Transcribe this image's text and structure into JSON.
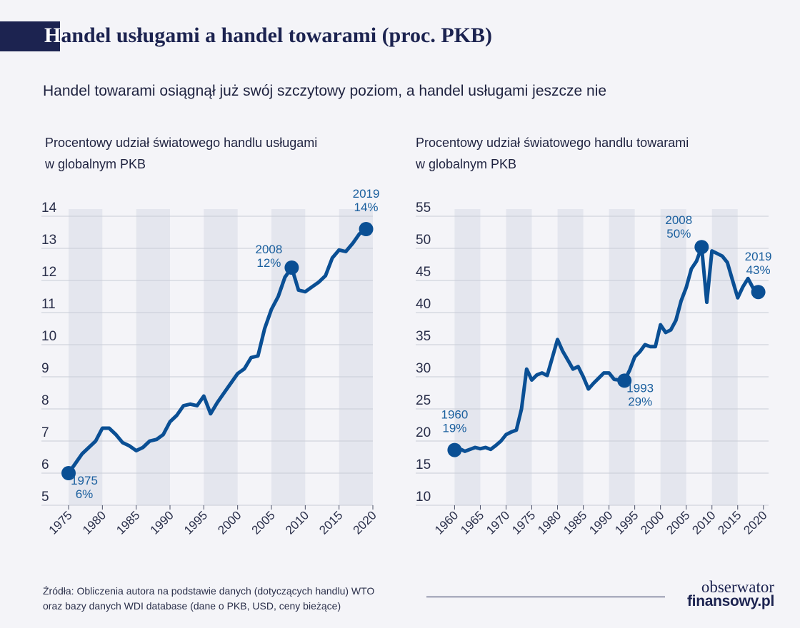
{
  "header": {
    "title_initial": "H",
    "title_rest": "andel usługami a handel towarami (proc. PKB)",
    "subtitle": "Handel towarami osiągnął już swój szczytowy poziom, a handel usługami jeszcze nie"
  },
  "colors": {
    "line": "#0a4f94",
    "accent_text": "#1a5f9e",
    "band": "#e4e6ee",
    "grid": "#c9ccd6",
    "title_bar": "#1c2350"
  },
  "chart_data": [
    {
      "type": "line",
      "title_lines": [
        "Procentowy udział światowego handlu usługami",
        "w globalnym PKB"
      ],
      "x_ticks": [
        1975,
        1980,
        1985,
        1990,
        1995,
        2000,
        2005,
        2010,
        2015,
        2020
      ],
      "y_ticks": [
        5,
        6,
        7,
        8,
        9,
        10,
        11,
        12,
        13,
        14
      ],
      "xlim": [
        1975,
        2020
      ],
      "ylim": [
        5,
        14
      ],
      "grid": true,
      "x": [
        1975,
        1976,
        1977,
        1978,
        1979,
        1980,
        1981,
        1982,
        1983,
        1984,
        1985,
        1986,
        1987,
        1988,
        1989,
        1990,
        1991,
        1992,
        1993,
        1994,
        1995,
        1996,
        1997,
        1998,
        1999,
        2000,
        2001,
        2002,
        2003,
        2004,
        2005,
        2006,
        2007,
        2008,
        2009,
        2010,
        2011,
        2012,
        2013,
        2014,
        2015,
        2016,
        2017,
        2018,
        2019
      ],
      "y": [
        6.0,
        6.3,
        6.6,
        6.8,
        7.0,
        7.4,
        7.4,
        7.2,
        6.95,
        6.85,
        6.7,
        6.8,
        7.0,
        7.05,
        7.2,
        7.6,
        7.8,
        8.1,
        8.15,
        8.1,
        8.4,
        7.85,
        8.2,
        8.5,
        8.8,
        9.1,
        9.25,
        9.6,
        9.65,
        10.5,
        11.1,
        11.5,
        12.1,
        12.4,
        11.7,
        11.65,
        11.8,
        11.95,
        12.15,
        12.7,
        12.95,
        12.9,
        13.15,
        13.45,
        13.6
      ],
      "highlights": [
        {
          "year": 1975,
          "value": 6.0,
          "year_label": "1975",
          "value_label": "6%",
          "pos": "below-right"
        },
        {
          "year": 2008,
          "value": 12.4,
          "year_label": "2008",
          "value_label": "12%",
          "pos": "left"
        },
        {
          "year": 2019,
          "value": 13.6,
          "year_label": "2019",
          "value_label": "14%",
          "pos": "above"
        }
      ]
    },
    {
      "type": "line",
      "title_lines": [
        "Procentowy udział światowego handlu towarami",
        "w globalnym PKB"
      ],
      "x_ticks": [
        1960,
        1965,
        1970,
        1975,
        1980,
        1985,
        1990,
        1995,
        2000,
        2005,
        2010,
        2015,
        2020
      ],
      "y_ticks": [
        10,
        15,
        20,
        25,
        30,
        35,
        40,
        45,
        50,
        55
      ],
      "xlim": [
        1958,
        2021
      ],
      "ylim": [
        10,
        55
      ],
      "grid": true,
      "x": [
        1960,
        1961,
        1962,
        1963,
        1964,
        1965,
        1966,
        1967,
        1968,
        1969,
        1970,
        1971,
        1972,
        1973,
        1974,
        1975,
        1976,
        1977,
        1978,
        1979,
        1980,
        1981,
        1982,
        1983,
        1984,
        1985,
        1986,
        1987,
        1988,
        1989,
        1990,
        1991,
        1992,
        1993,
        1994,
        1995,
        1996,
        1997,
        1998,
        1999,
        2000,
        2001,
        2002,
        2003,
        2004,
        2005,
        2006,
        2007,
        2008,
        2009,
        2010,
        2011,
        2012,
        2013,
        2014,
        2015,
        2016,
        2017,
        2018,
        2019
      ],
      "y": [
        18.6,
        18.8,
        18.4,
        18.7,
        19.0,
        18.8,
        19.0,
        18.7,
        19.3,
        20.0,
        21.0,
        21.4,
        21.7,
        25.0,
        31.2,
        29.5,
        30.3,
        30.6,
        30.2,
        33.0,
        35.8,
        34.0,
        32.6,
        31.2,
        31.6,
        30.0,
        28.1,
        29.0,
        29.8,
        30.6,
        30.6,
        29.6,
        29.5,
        29.4,
        31.0,
        33.1,
        33.9,
        35.0,
        34.7,
        34.7,
        38.1,
        36.9,
        37.3,
        38.8,
        41.8,
        43.9,
        46.8,
        48.0,
        50.2,
        41.6,
        49.6,
        49.2,
        48.8,
        47.8,
        45.0,
        42.3,
        44.0,
        45.3,
        43.8,
        43.2
      ],
      "highlights": [
        {
          "year": 1960,
          "value": 18.6,
          "year_label": "1960",
          "value_label": "19%",
          "pos": "above"
        },
        {
          "year": 1993,
          "value": 29.4,
          "year_label": "1993",
          "value_label": "29%",
          "pos": "below-right"
        },
        {
          "year": 2008,
          "value": 50.2,
          "year_label": "2008",
          "value_label": "50%",
          "pos": "left-above"
        },
        {
          "year": 2019,
          "value": 43.2,
          "year_label": "2019",
          "value_label": "43%",
          "pos": "above"
        }
      ]
    }
  ],
  "footer": {
    "source_line1": "Źródła: Obliczenia autora na podstawie danych (dotyczących handlu) WTO",
    "source_line2": "oraz bazy danych WDI database (dane o PKB, USD, ceny bieżące)",
    "logo_line1": "obserwator",
    "logo_line2": "finansowy.pl"
  }
}
